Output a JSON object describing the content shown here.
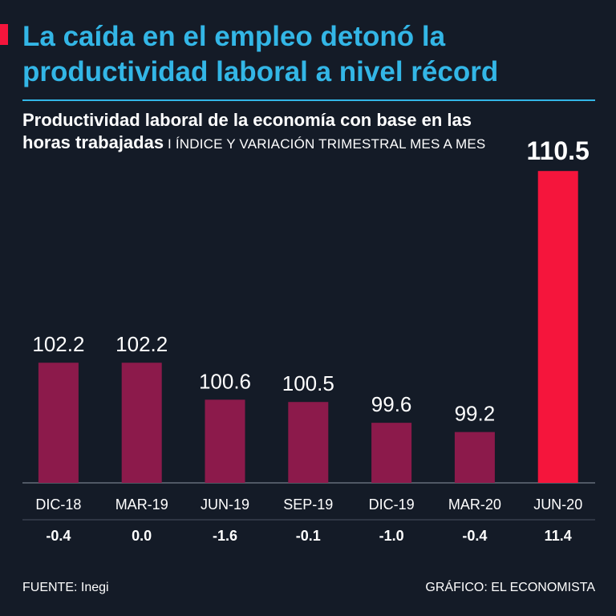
{
  "headline": {
    "line1": "La caída en el empleo detonó la",
    "line2": "productividad laboral a nivel récord"
  },
  "subtitle": {
    "bold_line1": "Productividad laboral de la economía con base en las",
    "bold_line2": "horas trabajadas",
    "light": " I ÍNDICE Y VARIACIÓN TRIMESTRAL MES A MES"
  },
  "chart_data": {
    "type": "bar",
    "title": "Productividad laboral de la economía con base en las horas trabajadas",
    "categories": [
      "DIC-18",
      "MAR-19",
      "JUN-19",
      "SEP-19",
      "DIC-19",
      "MAR-20",
      "JUN-20"
    ],
    "values": [
      102.2,
      102.2,
      100.6,
      100.5,
      99.6,
      99.2,
      110.5
    ],
    "value_labels": [
      "102.2",
      "102.2",
      "100.6",
      "100.5",
      "99.6",
      "99.2",
      "110.5"
    ],
    "variation_labels": [
      "-0.4",
      "0.0",
      "-1.6",
      "-0.1",
      "-1.0",
      "-0.4",
      "11.4"
    ],
    "highlight_index": 6,
    "colors": {
      "bar": "#8c1a4b",
      "highlight": "#f5153c",
      "axis": "#8c94a3"
    },
    "ylim": [
      97,
      112
    ]
  },
  "footer": {
    "source": "FUENTE: Inegi",
    "credit": "GRÁFICO: EL ECONOMISTA"
  }
}
